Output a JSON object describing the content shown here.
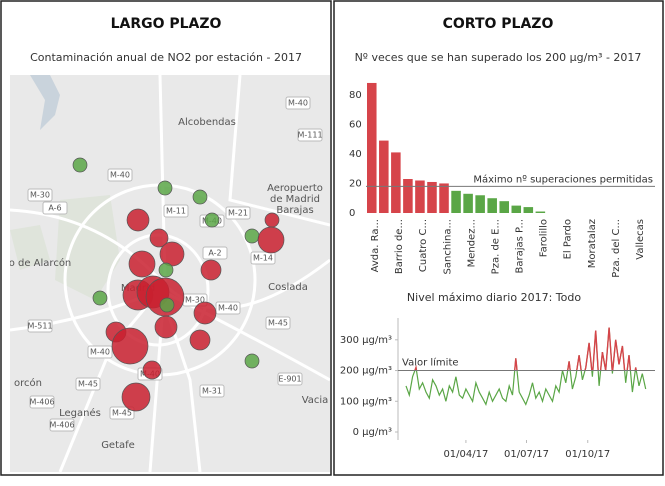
{
  "left_panel": {
    "title": "LARGO PLAZO",
    "subtitle": "Contaminación anual de NO2 por estación - 2017",
    "places": [
      "Alcobendas",
      "Aeropuerto",
      "de Madrid",
      "Barajas",
      "o de Alarcón",
      "Coslada",
      "Madrid",
      "orcón",
      "Leganés",
      "Getafe",
      "Vacia"
    ],
    "roads": [
      "M-111",
      "M-40",
      "M-30",
      "M-11",
      "M-40",
      "A-6",
      "M-14",
      "M-40",
      "A-2",
      "M-40",
      "M-511",
      "M-45",
      "M-40",
      "M-45",
      "M-406",
      "M-31",
      "E-901",
      "M-45",
      "M-406",
      "M-30",
      "M-40",
      "M-21"
    ]
  },
  "right_panel_title": "CORTO PLAZO",
  "chart_data": [
    {
      "type": "bar",
      "title": "Nº veces que se han superado los 200 µg/m³ - 2017",
      "categories": [
        "Avda. Ra...",
        null,
        "Barrio de...",
        null,
        "Cuatro C...",
        null,
        "Sanchina...",
        null,
        "Mendez...",
        null,
        "Pza. de E...",
        null,
        "Barajas P...",
        null,
        "Farolillo",
        null,
        "El Pardo",
        null,
        "Moratalaz",
        null,
        "Pza. del C...",
        null,
        "Vallecas",
        null
      ],
      "values": [
        88,
        49,
        41,
        23,
        22,
        21,
        20,
        15,
        13,
        12,
        10,
        8,
        5,
        4,
        1,
        0,
        0,
        0,
        0,
        0,
        0,
        0,
        0,
        0
      ],
      "colors": [
        "#d6444a",
        "#d6444a",
        "#d6444a",
        "#d6444a",
        "#d6444a",
        "#d6444a",
        "#d6444a",
        "#5aa646",
        "#5aa646",
        "#5aa646",
        "#5aa646",
        "#5aa646",
        "#5aa646",
        "#5aa646",
        "#5aa646",
        "#5aa646",
        "#5aa646",
        "#5aa646",
        "#5aa646",
        "#5aa646",
        "#5aa646",
        "#5aa646",
        "#5aa646",
        "#5aa646"
      ],
      "ylim": [
        0,
        90
      ],
      "yticks": [
        0,
        20,
        40,
        60,
        80
      ],
      "grid": false,
      "reference_line": {
        "value": 18,
        "label": "Máximo nº superaciones permitidas"
      }
    },
    {
      "type": "line",
      "title": "Nivel máximo diario 2017: Todo",
      "x": [
        "2017-01-01",
        "2017-01-06",
        "2017-01-11",
        "2017-01-16",
        "2017-01-21",
        "2017-01-26",
        "2017-01-31",
        "2017-02-05",
        "2017-02-10",
        "2017-02-15",
        "2017-02-20",
        "2017-02-25",
        "2017-03-02",
        "2017-03-07",
        "2017-03-12",
        "2017-03-17",
        "2017-03-22",
        "2017-03-27",
        "2017-04-01",
        "2017-04-06",
        "2017-04-11",
        "2017-04-16",
        "2017-04-21",
        "2017-04-26",
        "2017-05-01",
        "2017-05-06",
        "2017-05-11",
        "2017-05-16",
        "2017-05-21",
        "2017-05-26",
        "2017-05-31",
        "2017-06-05",
        "2017-06-10",
        "2017-06-15",
        "2017-06-20",
        "2017-06-25",
        "2017-06-30",
        "2017-07-05",
        "2017-07-10",
        "2017-07-15",
        "2017-07-20",
        "2017-07-25",
        "2017-07-30",
        "2017-08-04",
        "2017-08-09",
        "2017-08-14",
        "2017-08-19",
        "2017-08-24",
        "2017-08-29",
        "2017-09-03",
        "2017-09-08",
        "2017-09-13",
        "2017-09-18",
        "2017-09-23",
        "2017-09-28",
        "2017-10-03",
        "2017-10-08",
        "2017-10-13",
        "2017-10-18",
        "2017-10-23",
        "2017-10-28",
        "2017-11-02",
        "2017-11-07",
        "2017-11-12",
        "2017-11-17",
        "2017-11-22",
        "2017-11-27",
        "2017-12-02",
        "2017-12-07",
        "2017-12-12",
        "2017-12-17",
        "2017-12-22",
        "2017-12-27"
      ],
      "series": [
        {
          "color": "#5aa646",
          "values": [
            150,
            120,
            180,
            210,
            140,
            160,
            130,
            110,
            170,
            150,
            120,
            140,
            100,
            150,
            130,
            180,
            120,
            110,
            140,
            120,
            100,
            160,
            130,
            110,
            90,
            130,
            100,
            120,
            140,
            110,
            100,
            150,
            120,
            240,
            130,
            110,
            90,
            120,
            160,
            110,
            130,
            100,
            140,
            120,
            100,
            150,
            130,
            200,
            160,
            230,
            140,
            180,
            250,
            170,
            210,
            290,
            180,
            330,
            150,
            260,
            200,
            340,
            190,
            300,
            220,
            280,
            160,
            250,
            130,
            210,
            150,
            190,
            140
          ]
        }
      ],
      "above_color": "#d6444a",
      "xlim": [
        "2016-12-20",
        "2018-01-10"
      ],
      "xticks": [
        {
          "value": "2017-04-01",
          "label": "01/04/17"
        },
        {
          "value": "2017-07-01",
          "label": "01/07/17"
        },
        {
          "value": "2017-10-01",
          "label": "01/10/17"
        }
      ],
      "ylim": [
        -26,
        371
      ],
      "yticks": [
        {
          "value": 0,
          "label": "0 µg/m³"
        },
        {
          "value": 100,
          "label": "100 µg/m³"
        },
        {
          "value": 200,
          "label": "200 µg/m³"
        },
        {
          "value": 300,
          "label": "300 µg/m³"
        }
      ],
      "reference_line": {
        "value": 200,
        "label": "Valor límite"
      }
    }
  ]
}
